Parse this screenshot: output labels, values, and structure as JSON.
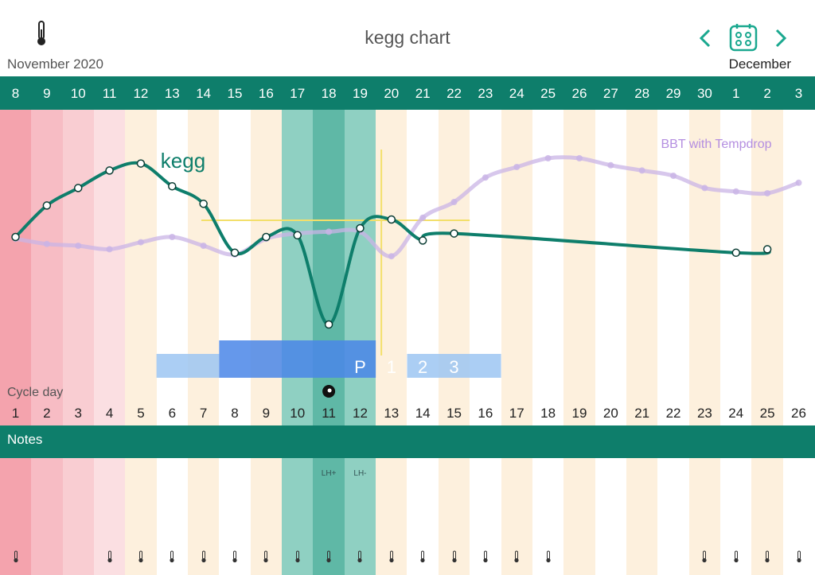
{
  "header": {
    "title": "kegg chart",
    "month_left": "November 2020",
    "month_right": "December",
    "thermometer_icon": "thermometer-icon",
    "prev_icon": "chevron-left-icon",
    "next_icon": "chevron-right-icon",
    "calendar_icon": "calendar-icon"
  },
  "dates": [
    "8",
    "9",
    "10",
    "11",
    "12",
    "13",
    "14",
    "15",
    "16",
    "17",
    "18",
    "19",
    "20",
    "21",
    "22",
    "23",
    "24",
    "25",
    "26",
    "27",
    "28",
    "29",
    "30",
    "1",
    "2",
    "3"
  ],
  "cycle": {
    "label": "Cycle day",
    "days": [
      "1",
      "2",
      "3",
      "4",
      "5",
      "6",
      "7",
      "8",
      "9",
      "10",
      "11",
      "12",
      "13",
      "14",
      "15",
      "16",
      "17",
      "18",
      "19",
      "20",
      "21",
      "22",
      "23",
      "24",
      "25",
      "26"
    ]
  },
  "chart_data": {
    "type": "line",
    "x": [
      "8",
      "9",
      "10",
      "11",
      "12",
      "13",
      "14",
      "15",
      "16",
      "17",
      "18",
      "19",
      "20",
      "21",
      "22",
      "23",
      "24",
      "25",
      "26",
      "27",
      "28",
      "29",
      "30",
      "1",
      "2",
      "3"
    ],
    "series": [
      {
        "name": "kegg",
        "color": "#0e7e6b",
        "values": [
          0.5,
          0.32,
          0.22,
          0.12,
          0.08,
          0.21,
          0.31,
          0.59,
          0.5,
          0.49,
          1.0,
          0.45,
          0.4,
          0.52,
          0.48,
          null,
          null,
          null,
          null,
          null,
          null,
          null,
          null,
          0.59,
          0.57,
          null
        ]
      },
      {
        "name": "BBT with Tempdrop",
        "color": "#c9b4e6",
        "values": [
          0.51,
          0.54,
          0.55,
          0.57,
          0.53,
          0.5,
          0.55,
          0.6,
          0.51,
          0.48,
          0.47,
          0.47,
          0.61,
          0.39,
          0.3,
          0.16,
          0.1,
          0.05,
          0.05,
          0.09,
          0.12,
          0.15,
          0.22,
          0.24,
          0.25,
          0.19
        ]
      }
    ],
    "labels": {
      "kegg": "kegg",
      "bbt": "BBT with Tempdrop"
    },
    "fertile_window": [
      "P",
      "1",
      "2",
      "3"
    ],
    "ovulation_marker": "ovulation-dot-icon"
  },
  "notes": {
    "label": "Notes",
    "lh": [
      {
        "date": "18",
        "text": "LH+"
      },
      {
        "date": "19",
        "text": "LH-"
      }
    ],
    "thermometer_days": [
      "8",
      "11",
      "12",
      "13",
      "14",
      "15",
      "16",
      "17",
      "18",
      "19",
      "20",
      "21",
      "22",
      "23",
      "24",
      "25",
      "30",
      "1",
      "2",
      "3"
    ]
  },
  "colors": {
    "accent": "#0e7e6b",
    "period": "#f4a3ad",
    "fertile": "#5fb8a6",
    "bbt": "#c9b4e6",
    "window": "#4a86e8",
    "window_light": "#9cc6f2"
  }
}
